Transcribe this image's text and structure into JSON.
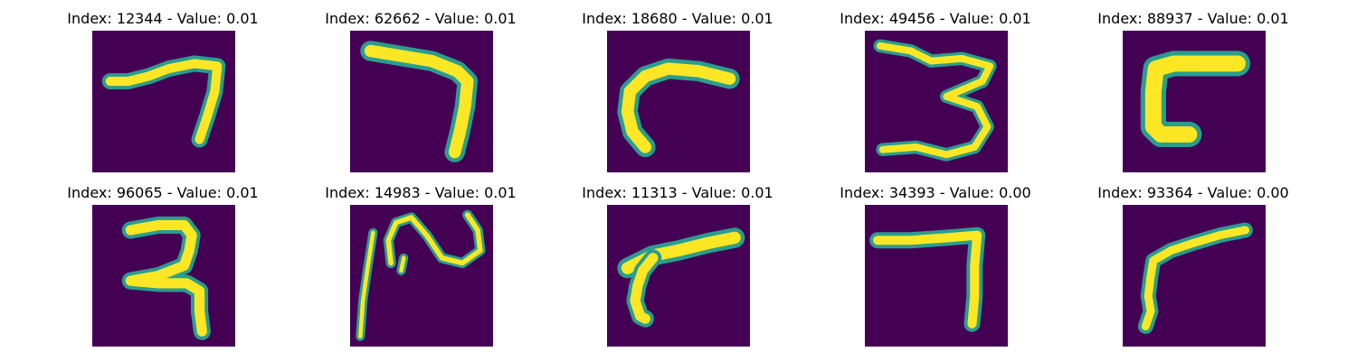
{
  "colors": {
    "background": "#440154",
    "stroke_outer": "#2a9d8f",
    "stroke_inner": "#fde725"
  },
  "panels": [
    {
      "title": "Index: 12344 - Value: 0.01",
      "glyph": "seven-loose"
    },
    {
      "title": "Index: 62662 - Value: 0.01",
      "glyph": "seven-bold"
    },
    {
      "title": "Index: 18680 - Value: 0.01",
      "glyph": "hook"
    },
    {
      "title": "Index: 49456 - Value: 0.01",
      "glyph": "three"
    },
    {
      "title": "Index: 88937 - Value: 0.01",
      "glyph": "c-block"
    },
    {
      "title": "Index: 96065 - Value: 0.01",
      "glyph": "seven-looped"
    },
    {
      "title": "Index: 14983 - Value: 0.01",
      "glyph": "squiggle"
    },
    {
      "title": "Index: 11313 - Value: 0.01",
      "glyph": "angled-seven"
    },
    {
      "title": "Index: 34393 - Value: 0.00",
      "glyph": "seven-square"
    },
    {
      "title": "Index: 93364 - Value: 0.00",
      "glyph": "seven-slant"
    }
  ]
}
